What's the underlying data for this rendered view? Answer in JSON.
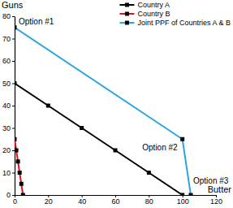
{
  "chart_data": {
    "type": "line",
    "x_label": "Butter",
    "y_label": "Guns",
    "xlim": [
      0,
      120
    ],
    "xticks": [
      0,
      20,
      40,
      60,
      80,
      100,
      120
    ],
    "ylim": [
      0,
      80
    ],
    "yticks": [
      0,
      10,
      20,
      30,
      40,
      50,
      60,
      70,
      80
    ],
    "legend": "upper right",
    "marker": "square",
    "series": [
      {
        "name": "Country A",
        "color": "#000000",
        "x": [
          0,
          20,
          40,
          60,
          80,
          100
        ],
        "values": [
          50,
          40,
          30,
          20,
          10,
          0
        ]
      },
      {
        "name": "Country B",
        "color": "#e3101c",
        "x": [
          0,
          1,
          2,
          3,
          4,
          5
        ],
        "values": [
          25,
          20,
          15,
          10,
          5,
          0
        ]
      },
      {
        "name": "Joint PPF of Countries A & B",
        "color": "#2aa6de",
        "x": [
          0,
          100,
          105
        ],
        "values": [
          75,
          25,
          0
        ]
      }
    ],
    "annotations": [
      {
        "text": "Option #1",
        "x": 0,
        "y": 75
      },
      {
        "text": "Option #2",
        "x": 100,
        "y": 25
      },
      {
        "text": "Option #3",
        "x": 105,
        "y": 0
      }
    ]
  }
}
